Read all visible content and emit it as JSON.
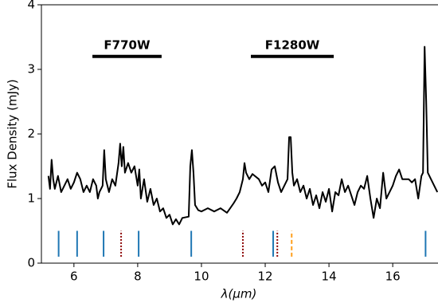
{
  "chart_data": {
    "type": "line",
    "xlabel": "λ(μm)",
    "ylabel": "Flux Density (mJy)",
    "xlim": [
      4.98,
      17.42
    ],
    "ylim": [
      0,
      4
    ],
    "xticks": [
      6,
      8,
      10,
      12,
      14,
      16
    ],
    "yticks": [
      0,
      1,
      2,
      3,
      4
    ],
    "x": [
      5.2,
      5.25,
      5.3,
      5.35,
      5.4,
      5.5,
      5.6,
      5.7,
      5.8,
      5.9,
      6.0,
      6.1,
      6.2,
      6.3,
      6.4,
      6.5,
      6.6,
      6.7,
      6.75,
      6.8,
      6.9,
      6.95,
      7.0,
      7.1,
      7.2,
      7.3,
      7.4,
      7.45,
      7.5,
      7.55,
      7.6,
      7.7,
      7.8,
      7.9,
      8.0,
      8.05,
      8.1,
      8.2,
      8.3,
      8.4,
      8.5,
      8.6,
      8.7,
      8.8,
      8.9,
      9.0,
      9.1,
      9.2,
      9.3,
      9.4,
      9.6,
      9.65,
      9.7,
      9.75,
      9.8,
      9.9,
      10.0,
      10.2,
      10.4,
      10.6,
      10.8,
      10.9,
      11.0,
      11.1,
      11.2,
      11.3,
      11.35,
      11.4,
      11.5,
      11.6,
      11.8,
      11.9,
      12.0,
      12.1,
      12.2,
      12.3,
      12.4,
      12.5,
      12.6,
      12.7,
      12.75,
      12.8,
      12.85,
      12.9,
      13.0,
      13.1,
      13.2,
      13.3,
      13.4,
      13.5,
      13.6,
      13.7,
      13.8,
      13.9,
      14.0,
      14.1,
      14.2,
      14.3,
      14.4,
      14.5,
      14.6,
      14.7,
      14.8,
      14.9,
      15.0,
      15.1,
      15.2,
      15.3,
      15.4,
      15.5,
      15.6,
      15.7,
      15.8,
      15.9,
      16.0,
      16.1,
      16.2,
      16.3,
      16.5,
      16.6,
      16.7,
      16.8,
      16.9,
      16.95,
      17.0,
      17.05,
      17.1,
      17.2,
      17.3,
      17.4
    ],
    "series": [
      {
        "color": "#000000",
        "values": [
          1.35,
          1.15,
          1.6,
          1.3,
          1.15,
          1.35,
          1.1,
          1.2,
          1.3,
          1.15,
          1.25,
          1.4,
          1.3,
          1.1,
          1.2,
          1.1,
          1.3,
          1.2,
          1.0,
          1.1,
          1.2,
          1.75,
          1.3,
          1.1,
          1.3,
          1.2,
          1.55,
          1.85,
          1.5,
          1.8,
          1.4,
          1.55,
          1.4,
          1.5,
          1.2,
          1.45,
          1.0,
          1.3,
          0.95,
          1.15,
          0.9,
          1.0,
          0.8,
          0.85,
          0.7,
          0.75,
          0.6,
          0.68,
          0.6,
          0.7,
          0.72,
          1.5,
          1.75,
          1.4,
          0.9,
          0.82,
          0.8,
          0.85,
          0.8,
          0.85,
          0.78,
          0.85,
          0.92,
          1.0,
          1.1,
          1.3,
          1.55,
          1.4,
          1.3,
          1.38,
          1.3,
          1.2,
          1.25,
          1.1,
          1.45,
          1.5,
          1.25,
          1.1,
          1.2,
          1.3,
          1.95,
          1.95,
          1.4,
          1.2,
          1.3,
          1.1,
          1.2,
          1.0,
          1.15,
          0.9,
          1.05,
          0.85,
          1.1,
          0.95,
          1.15,
          0.8,
          1.1,
          1.05,
          1.3,
          1.1,
          1.2,
          1.05,
          0.9,
          1.1,
          1.2,
          1.15,
          1.35,
          1.0,
          0.7,
          1.0,
          0.85,
          1.4,
          1.0,
          1.1,
          1.2,
          1.35,
          1.45,
          1.3,
          1.3,
          1.25,
          1.3,
          1.0,
          1.35,
          1.4,
          3.35,
          2.5,
          1.4,
          1.3,
          1.2,
          1.1
        ]
      }
    ],
    "feature_lines": [
      {
        "color": "#1f77b4",
        "style": "solid",
        "y_range": [
          0.1,
          0.5
        ],
        "x": [
          5.52,
          6.1,
          6.93,
          8.03,
          9.68,
          12.25,
          17.03
        ]
      },
      {
        "color": "#8b0000",
        "style": "dotted",
        "y_range": [
          0.1,
          0.5
        ],
        "x": [
          7.48,
          11.3,
          12.38
        ]
      },
      {
        "color": "#ff9f1c",
        "style": "dashed",
        "y_range": [
          0.1,
          0.5
        ],
        "x": [
          12.83
        ]
      }
    ],
    "filters": [
      {
        "label": "F770W",
        "x": [
          6.58,
          8.75
        ],
        "y": 3.2
      },
      {
        "label": "F1280W",
        "x": [
          11.55,
          14.15
        ],
        "y": 3.2
      }
    ]
  }
}
